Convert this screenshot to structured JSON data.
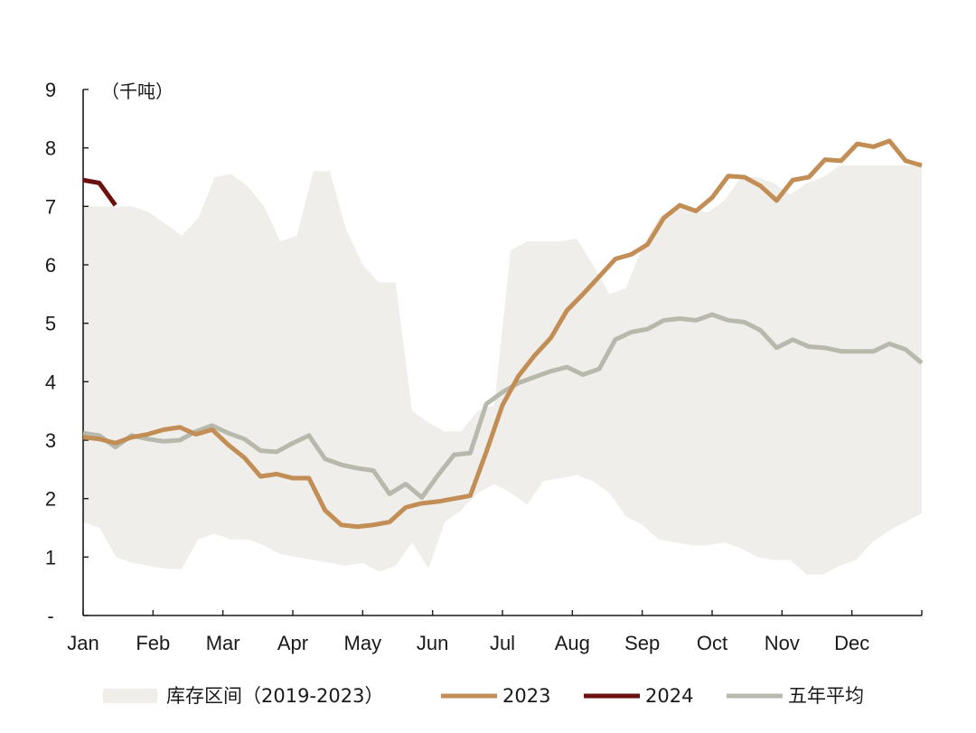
{
  "chart_data": {
    "type": "line",
    "unit": "（千吨）",
    "ylim": [
      0,
      9
    ],
    "y_ticks": [
      "-",
      "1",
      "2",
      "3",
      "4",
      "5",
      "6",
      "7",
      "8",
      "9"
    ],
    "x_ticks": [
      "Jan",
      "Feb",
      "Mar",
      "Apr",
      "May",
      "Jun",
      "Jul",
      "Aug",
      "Sep",
      "Oct",
      "Nov",
      "Dec"
    ],
    "weeks": 52,
    "band": {
      "name": "库存区间（2019-2023）",
      "color": "#efeeeb",
      "upper": [
        7.0,
        7.0,
        7.0,
        7.0,
        6.9,
        6.7,
        6.5,
        6.8,
        7.5,
        7.55,
        7.35,
        7.0,
        6.4,
        6.5,
        7.6,
        7.6,
        6.6,
        6.0,
        5.7,
        5.7,
        3.5,
        3.3,
        3.15,
        3.15,
        3.5,
        3.6,
        6.25,
        6.4,
        6.4,
        6.4,
        6.45,
        6.0,
        5.5,
        5.6,
        6.3,
        6.8,
        7.0,
        6.95,
        6.9,
        7.1,
        7.5,
        7.5,
        7.4,
        7.2,
        7.4,
        7.5,
        7.7,
        7.7,
        7.7,
        7.7,
        7.7,
        7.7
      ],
      "lower": [
        1.6,
        1.5,
        1.0,
        0.9,
        0.85,
        0.8,
        0.8,
        1.3,
        1.4,
        1.3,
        1.3,
        1.2,
        1.05,
        1.0,
        0.95,
        0.9,
        0.85,
        0.9,
        0.75,
        0.85,
        1.25,
        0.8,
        1.6,
        1.8,
        2.1,
        2.25,
        2.1,
        1.9,
        2.3,
        2.35,
        2.4,
        2.3,
        2.1,
        1.7,
        1.55,
        1.3,
        1.25,
        1.2,
        1.2,
        1.25,
        1.15,
        1.0,
        0.95,
        0.95,
        0.7,
        0.7,
        0.85,
        0.95,
        1.25,
        1.45,
        1.6,
        1.75
      ]
    },
    "series": [
      {
        "name": "2023",
        "color": "#c28e55",
        "values": [
          3.05,
          3.02,
          2.95,
          3.05,
          3.1,
          3.18,
          3.22,
          3.1,
          3.18,
          2.92,
          2.7,
          2.38,
          2.42,
          2.35,
          2.35,
          1.8,
          1.55,
          1.52,
          1.55,
          1.6,
          1.85,
          1.92,
          1.95,
          2.0,
          2.05,
          2.8,
          3.6,
          4.1,
          4.45,
          4.75,
          5.22,
          5.5,
          5.8,
          6.1,
          6.18,
          6.35,
          6.8,
          7.02,
          6.92,
          7.15,
          7.52,
          7.5,
          7.35,
          7.1,
          7.45,
          7.5,
          7.8,
          7.78,
          8.07,
          8.02,
          8.12,
          7.78,
          7.7
        ]
      },
      {
        "name": "2024",
        "color": "#6b0f0f",
        "values": [
          7.45,
          7.4,
          7.02
        ]
      },
      {
        "name": "五年平均",
        "color": "#b8b9ad",
        "values": [
          3.12,
          3.08,
          2.88,
          3.08,
          3.02,
          2.98,
          3.0,
          3.15,
          3.25,
          3.12,
          3.02,
          2.82,
          2.8,
          2.95,
          3.08,
          2.68,
          2.58,
          2.52,
          2.48,
          2.08,
          2.25,
          2.02,
          2.4,
          2.75,
          2.78,
          3.62,
          3.82,
          3.98,
          4.08,
          4.18,
          4.25,
          4.12,
          4.22,
          4.72,
          4.85,
          4.9,
          5.05,
          5.08,
          5.05,
          5.15,
          5.05,
          5.02,
          4.88,
          4.58,
          4.72,
          4.6,
          4.58,
          4.52,
          4.52,
          4.52,
          4.65,
          4.55,
          4.32
        ]
      }
    ],
    "legend": [
      "库存区间（2019-2023）",
      "2023",
      "2024",
      "五年平均"
    ],
    "legend_position": "bottom",
    "grid": false
  }
}
